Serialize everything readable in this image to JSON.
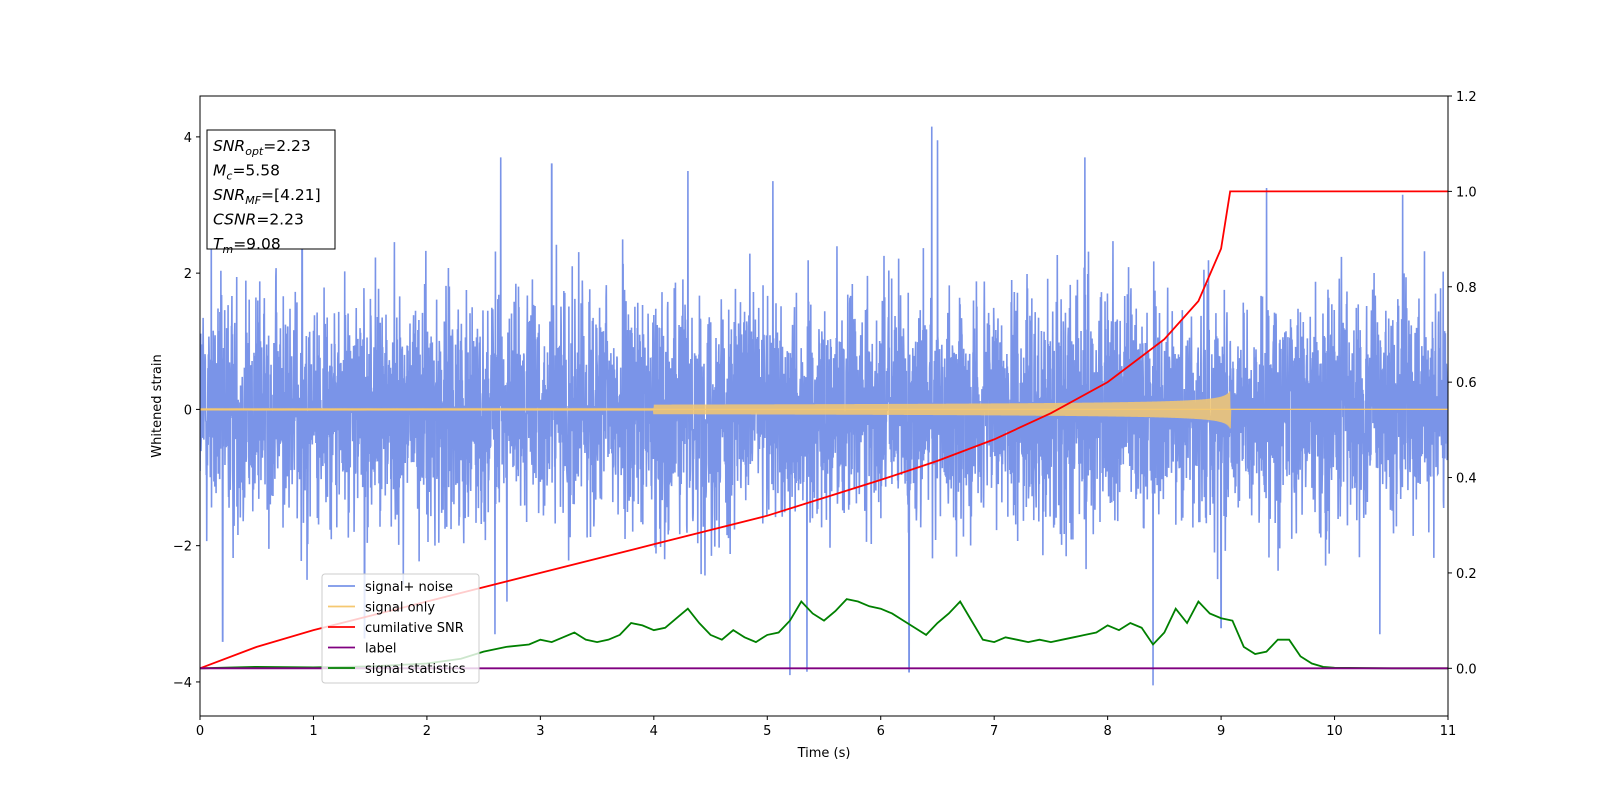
{
  "chart_data": {
    "type": "line",
    "xlabel": "Time (s)",
    "ylabel": "Whitened strain",
    "xlim": [
      0,
      11
    ],
    "ylim": [
      -4.5,
      4.6
    ],
    "y2lim": [
      -0.1,
      1.2
    ],
    "xticks": [
      "0",
      "1",
      "2",
      "3",
      "4",
      "5",
      "6",
      "7",
      "8",
      "9",
      "10",
      "11"
    ],
    "yticks": [
      "−4",
      "−2",
      "0",
      "2",
      "4"
    ],
    "y2ticks": [
      "0.0",
      "0.2",
      "0.4",
      "0.6",
      "0.8",
      "1.0",
      "1.2"
    ],
    "grid": false,
    "legend_position": "lower-left",
    "stats_box": {
      "position": "top-left",
      "lines": [
        {
          "sym": "SNR",
          "sub": "opt",
          "val": "=2.23"
        },
        {
          "sym": "M",
          "sub": "c",
          "val": "=5.58"
        },
        {
          "sym": "SNR",
          "sub": "MF",
          "val": "=[4.21]"
        },
        {
          "sym": "CSNR",
          "sub": "",
          "val": "=2.23"
        },
        {
          "sym": "T",
          "sub": "m",
          "val": "=9.08"
        }
      ]
    },
    "series": [
      {
        "name": "signal+ noise",
        "axis": "left",
        "color": "#7a94e8",
        "kind": "noise",
        "std": 1.05,
        "x_range": [
          0,
          11
        ],
        "notable_peaks": [
          [
            0.1,
            2.9
          ],
          [
            0.9,
            3.15
          ],
          [
            2.65,
            3.7
          ],
          [
            3.1,
            3.6
          ],
          [
            4.3,
            3.5
          ],
          [
            5.05,
            3.35
          ],
          [
            6.45,
            4.15
          ],
          [
            6.5,
            3.95
          ],
          [
            7.8,
            3.7
          ],
          [
            9.4,
            3.25
          ],
          [
            10.6,
            3.15
          ],
          [
            0.2,
            -3.4
          ],
          [
            1.45,
            -3.35
          ],
          [
            2.6,
            -3.3
          ],
          [
            5.2,
            -3.9
          ],
          [
            5.35,
            -3.85
          ],
          [
            6.25,
            -3.85
          ],
          [
            8.4,
            -4.05
          ],
          [
            9.0,
            -3.2
          ],
          [
            10.4,
            -3.3
          ]
        ]
      },
      {
        "name": "signal only",
        "axis": "left",
        "color": "#f5c870",
        "kind": "chirp",
        "t_merge": 9.08,
        "amp_at_merge": 0.28
      },
      {
        "name": "cumilative SNR",
        "axis": "right",
        "color": "#ff0000",
        "x": [
          0,
          0.5,
          1,
          2,
          3,
          4,
          5,
          6,
          6.5,
          7,
          7.5,
          8,
          8.5,
          8.8,
          9.0,
          9.08,
          9.08,
          11
        ],
        "values": [
          0.0,
          0.045,
          0.08,
          0.14,
          0.2,
          0.26,
          0.32,
          0.395,
          0.435,
          0.48,
          0.535,
          0.6,
          0.69,
          0.77,
          0.88,
          1.0,
          1.0,
          1.0
        ]
      },
      {
        "name": "label",
        "axis": "right",
        "color": "#800080",
        "x": [
          0,
          11
        ],
        "values": [
          0.0,
          0.0
        ]
      },
      {
        "name": "signal statistics",
        "axis": "right",
        "color": "#008000",
        "x": [
          0,
          0.5,
          1,
          1.5,
          2,
          2.3,
          2.5,
          2.7,
          2.9,
          3.0,
          3.1,
          3.2,
          3.3,
          3.4,
          3.5,
          3.6,
          3.7,
          3.8,
          3.9,
          4.0,
          4.1,
          4.2,
          4.3,
          4.4,
          4.5,
          4.6,
          4.7,
          4.8,
          4.9,
          5.0,
          5.1,
          5.2,
          5.3,
          5.4,
          5.5,
          5.6,
          5.7,
          5.8,
          5.9,
          6.0,
          6.1,
          6.2,
          6.3,
          6.4,
          6.5,
          6.6,
          6.7,
          6.8,
          6.9,
          7.0,
          7.1,
          7.2,
          7.3,
          7.4,
          7.5,
          7.6,
          7.7,
          7.8,
          7.9,
          8.0,
          8.1,
          8.2,
          8.3,
          8.4,
          8.5,
          8.6,
          8.7,
          8.8,
          8.9,
          9.0,
          9.1,
          9.2,
          9.3,
          9.4,
          9.5,
          9.6,
          9.7,
          9.8,
          9.9,
          10.0,
          10.5,
          11
        ],
        "values": [
          0.0,
          0.003,
          0.002,
          0.004,
          0.01,
          0.02,
          0.035,
          0.045,
          0.05,
          0.06,
          0.055,
          0.065,
          0.075,
          0.06,
          0.055,
          0.06,
          0.07,
          0.095,
          0.09,
          0.08,
          0.085,
          0.105,
          0.125,
          0.095,
          0.07,
          0.06,
          0.08,
          0.065,
          0.055,
          0.07,
          0.075,
          0.1,
          0.14,
          0.115,
          0.1,
          0.12,
          0.145,
          0.14,
          0.13,
          0.125,
          0.115,
          0.1,
          0.085,
          0.07,
          0.095,
          0.115,
          0.14,
          0.1,
          0.06,
          0.055,
          0.065,
          0.06,
          0.055,
          0.06,
          0.055,
          0.06,
          0.065,
          0.07,
          0.075,
          0.09,
          0.08,
          0.095,
          0.085,
          0.05,
          0.075,
          0.125,
          0.095,
          0.14,
          0.115,
          0.105,
          0.1,
          0.045,
          0.03,
          0.035,
          0.06,
          0.06,
          0.025,
          0.01,
          0.003,
          0.001,
          0.0,
          0.0
        ]
      }
    ]
  }
}
